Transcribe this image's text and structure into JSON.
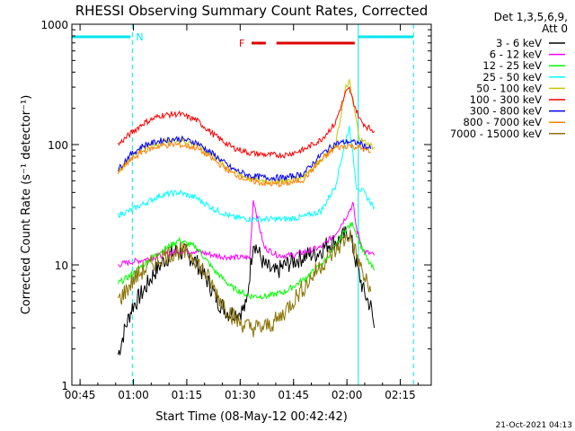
{
  "chart_data": {
    "type": "line",
    "title": "RHESSI Observing Summary Count Rates, Corrected",
    "xlabel": "Start Time (08-May-12 00:42:42)",
    "ylabel": "Corrected Count Rate (s⁻¹ detector⁻¹)",
    "ylog": true,
    "ylim": [
      1,
      1000
    ],
    "xlim_minutes": [
      0.0,
      101.0
    ],
    "x_ticks": [
      {
        "label": "00:45",
        "t": 2.3
      },
      {
        "label": "01:00",
        "t": 17.3
      },
      {
        "label": "01:15",
        "t": 32.3
      },
      {
        "label": "01:30",
        "t": 47.3
      },
      {
        "label": "01:45",
        "t": 62.3
      },
      {
        "label": "02:00",
        "t": 77.3
      },
      {
        "label": "02:15",
        "t": 92.3
      }
    ],
    "y_ticks": [
      {
        "label": "1",
        "v": 1
      },
      {
        "label": "10",
        "v": 10
      },
      {
        "label": "100",
        "v": 100
      },
      {
        "label": "1000",
        "v": 1000
      }
    ],
    "legend_header": [
      "Det 1,3,5,6,9,",
      "Att 0"
    ],
    "legend_placement": "right",
    "timestamp": "21-Oct-2021 04:13",
    "annotations": {
      "night_label": "N",
      "flare_label": "F",
      "night_bars": [
        [
          0.0,
          16.5
        ],
        [
          80.5,
          96.0
        ]
      ],
      "flare_bars": [
        [
          50.5,
          54.5
        ],
        [
          57.5,
          79.5
        ]
      ],
      "dashed_lines_t": [
        17.0,
        96.0
      ],
      "solid_lines_t": [
        80.5
      ]
    },
    "series": [
      {
        "name": "3 - 6 keV",
        "color": "#000000",
        "x": [
          13,
          15,
          17,
          20,
          23,
          26,
          29,
          32,
          35,
          38,
          41,
          44,
          47,
          49,
          51,
          54,
          57,
          60,
          63,
          66,
          69,
          72,
          75,
          78,
          80,
          82,
          84,
          85
        ],
        "y": [
          1.8,
          3,
          4.5,
          6,
          8.5,
          11,
          13,
          12.5,
          10.5,
          7.5,
          5,
          4,
          4,
          4.5,
          16,
          10,
          8.5,
          10,
          11,
          12,
          12.5,
          15,
          16,
          19,
          10,
          6,
          4.5,
          3
        ]
      },
      {
        "name": "6 - 12 keV",
        "color": "#ff00ff",
        "x": [
          13,
          16,
          20,
          25,
          30,
          35,
          40,
          45,
          50,
          51,
          54,
          58,
          62,
          66,
          70,
          74,
          77,
          79,
          80,
          82,
          85
        ],
        "y": [
          10,
          10.5,
          11,
          12,
          13,
          13,
          12,
          11.5,
          11.5,
          35,
          14,
          12,
          12,
          13,
          14,
          18,
          25,
          32,
          20,
          13,
          12
        ]
      },
      {
        "name": "12 - 25 keV",
        "color": "#00ff00",
        "x": [
          13,
          16,
          20,
          25,
          30,
          35,
          40,
          45,
          50,
          55,
          60,
          65,
          70,
          74,
          77,
          79,
          81,
          83,
          85
        ],
        "y": [
          7,
          8,
          10,
          13,
          16,
          14,
          9,
          6.5,
          5.5,
          5.5,
          6,
          7.5,
          10,
          14,
          20,
          22,
          15,
          11,
          9
        ]
      },
      {
        "name": "25 - 50 keV",
        "color": "#00ffff",
        "x": [
          13,
          16,
          20,
          25,
          30,
          35,
          40,
          45,
          50,
          55,
          60,
          65,
          70,
          74,
          77,
          78,
          79,
          80,
          82,
          85
        ],
        "y": [
          26,
          28,
          32,
          38,
          40,
          36,
          29,
          25,
          24,
          24,
          24,
          25,
          28,
          45,
          110,
          140,
          80,
          45,
          40,
          30
        ]
      },
      {
        "name": "50 - 100 keV",
        "color": "#c8c800",
        "x": [
          13,
          16,
          20,
          25,
          30,
          35,
          40,
          45,
          50,
          55,
          60,
          65,
          70,
          74,
          77,
          78,
          79,
          81,
          85
        ],
        "y": [
          60,
          75,
          95,
          105,
          110,
          100,
          80,
          60,
          52,
          50,
          50,
          55,
          75,
          95,
          300,
          330,
          220,
          110,
          95
        ]
      },
      {
        "name": "100 - 300 keV",
        "color": "#ff0000",
        "x": [
          13,
          16,
          20,
          25,
          30,
          35,
          40,
          45,
          50,
          55,
          60,
          65,
          70,
          74,
          77,
          78,
          79,
          81,
          83,
          85
        ],
        "y": [
          100,
          120,
          150,
          175,
          180,
          160,
          120,
          95,
          85,
          82,
          82,
          90,
          110,
          150,
          270,
          290,
          230,
          160,
          140,
          130
        ]
      },
      {
        "name": "300 - 800 keV",
        "color": "#0000ff",
        "x": [
          13,
          16,
          20,
          25,
          30,
          35,
          40,
          45,
          50,
          55,
          60,
          65,
          70,
          74,
          78,
          81,
          84
        ],
        "y": [
          62,
          80,
          98,
          108,
          112,
          104,
          82,
          63,
          55,
          53,
          53,
          57,
          82,
          102,
          106,
          102,
          92
        ]
      },
      {
        "name": "800 - 7000 keV",
        "color": "#ff8000",
        "x": [
          13,
          16,
          20,
          25,
          30,
          35,
          40,
          45,
          50,
          55,
          60,
          65,
          70,
          74,
          78,
          81,
          84
        ],
        "y": [
          58,
          72,
          88,
          98,
          100,
          94,
          74,
          58,
          50,
          47,
          47,
          51,
          74,
          94,
          98,
          94,
          86
        ]
      },
      {
        "name": "7000 - 15000 keV",
        "color": "#8b7300",
        "x": [
          13,
          15,
          18,
          22,
          26,
          30,
          34,
          38,
          42,
          46,
          50,
          54,
          58,
          62,
          66,
          70,
          74,
          78,
          80,
          82,
          84
        ],
        "y": [
          5,
          6,
          8,
          10,
          12,
          13,
          12,
          8,
          5,
          3.5,
          3,
          3,
          3.5,
          5,
          7,
          10,
          13,
          18,
          12,
          8,
          6
        ]
      }
    ]
  }
}
